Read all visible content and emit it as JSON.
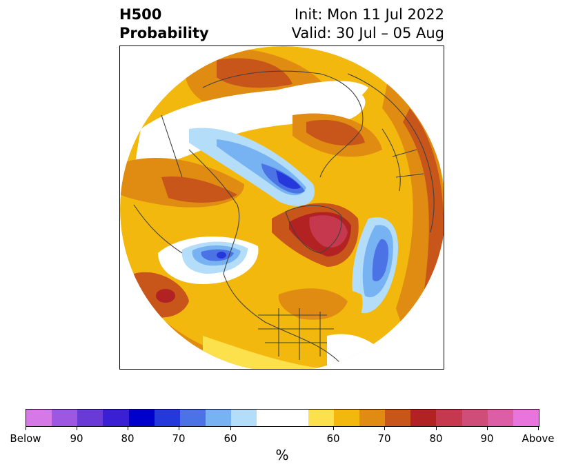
{
  "title": {
    "left_line1": "H500",
    "left_line2": "Probability",
    "right_line1": "Init: Mon 11 Jul 2022",
    "right_line2": "Valid: 30 Jul – 05 Aug"
  },
  "colorbar": {
    "label": "%",
    "ticks": [
      "Below",
      "90",
      "80",
      "70",
      "60",
      "60",
      "70",
      "80",
      "90",
      "Above"
    ],
    "colors": {
      "below": [
        "#d579e6",
        "#9e57e0",
        "#6a3ad7",
        "#3a1fd4",
        "#0000cc",
        "#2438db",
        "#4c73e5",
        "#77b3f2",
        "#b3ddf9"
      ],
      "neutral": "#ffffff",
      "above": [
        "#fce14d",
        "#f2b80d",
        "#e08c12",
        "#c8561a",
        "#b22222",
        "#c5384d",
        "#cf4d79",
        "#dc5ea6",
        "#e775dd"
      ]
    }
  }
}
